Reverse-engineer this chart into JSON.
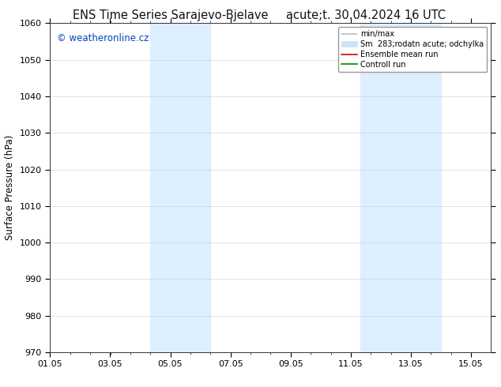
{
  "title_left": "ENS Time Series Sarajevo-Bjelave",
  "title_right": "acute;t. 30.04.2024 16 UTC",
  "ylabel": "Surface Pressure (hPa)",
  "ylim": [
    970,
    1060
  ],
  "yticks": [
    970,
    980,
    990,
    1000,
    1010,
    1020,
    1030,
    1040,
    1050,
    1060
  ],
  "xtick_labels": [
    "01.05",
    "03.05",
    "05.05",
    "07.05",
    "09.05",
    "11.05",
    "13.05",
    "15.05"
  ],
  "xtick_positions": [
    0,
    2,
    4,
    6,
    8,
    10,
    12,
    14
  ],
  "xlim": [
    0,
    14.667
  ],
  "shaded_regions": [
    {
      "x_start": 3.33,
      "x_end": 5.33,
      "color": "#ddeeff"
    },
    {
      "x_start": 10.33,
      "x_end": 13.0,
      "color": "#ddeeff"
    }
  ],
  "watermark": "© weatheronline.cz",
  "legend_entries": [
    {
      "label": "min/max",
      "color": "#bbbbbb",
      "lw": 1.2
    },
    {
      "label": "Sm  283;rodatn acute; odchylka",
      "color": "#cce4f5",
      "lw": 8
    },
    {
      "label": "Ensemble mean run",
      "color": "#dd0000",
      "lw": 1.2
    },
    {
      "label": "Controll run",
      "color": "#008800",
      "lw": 1.2
    }
  ],
  "background_color": "#ffffff",
  "plot_bg_color": "#ffffff",
  "grid_color": "#cccccc",
  "title_fontsize": 10.5,
  "axis_label_fontsize": 8.5,
  "tick_fontsize": 8,
  "watermark_color": "#0044bb",
  "watermark_fontsize": 8.5
}
